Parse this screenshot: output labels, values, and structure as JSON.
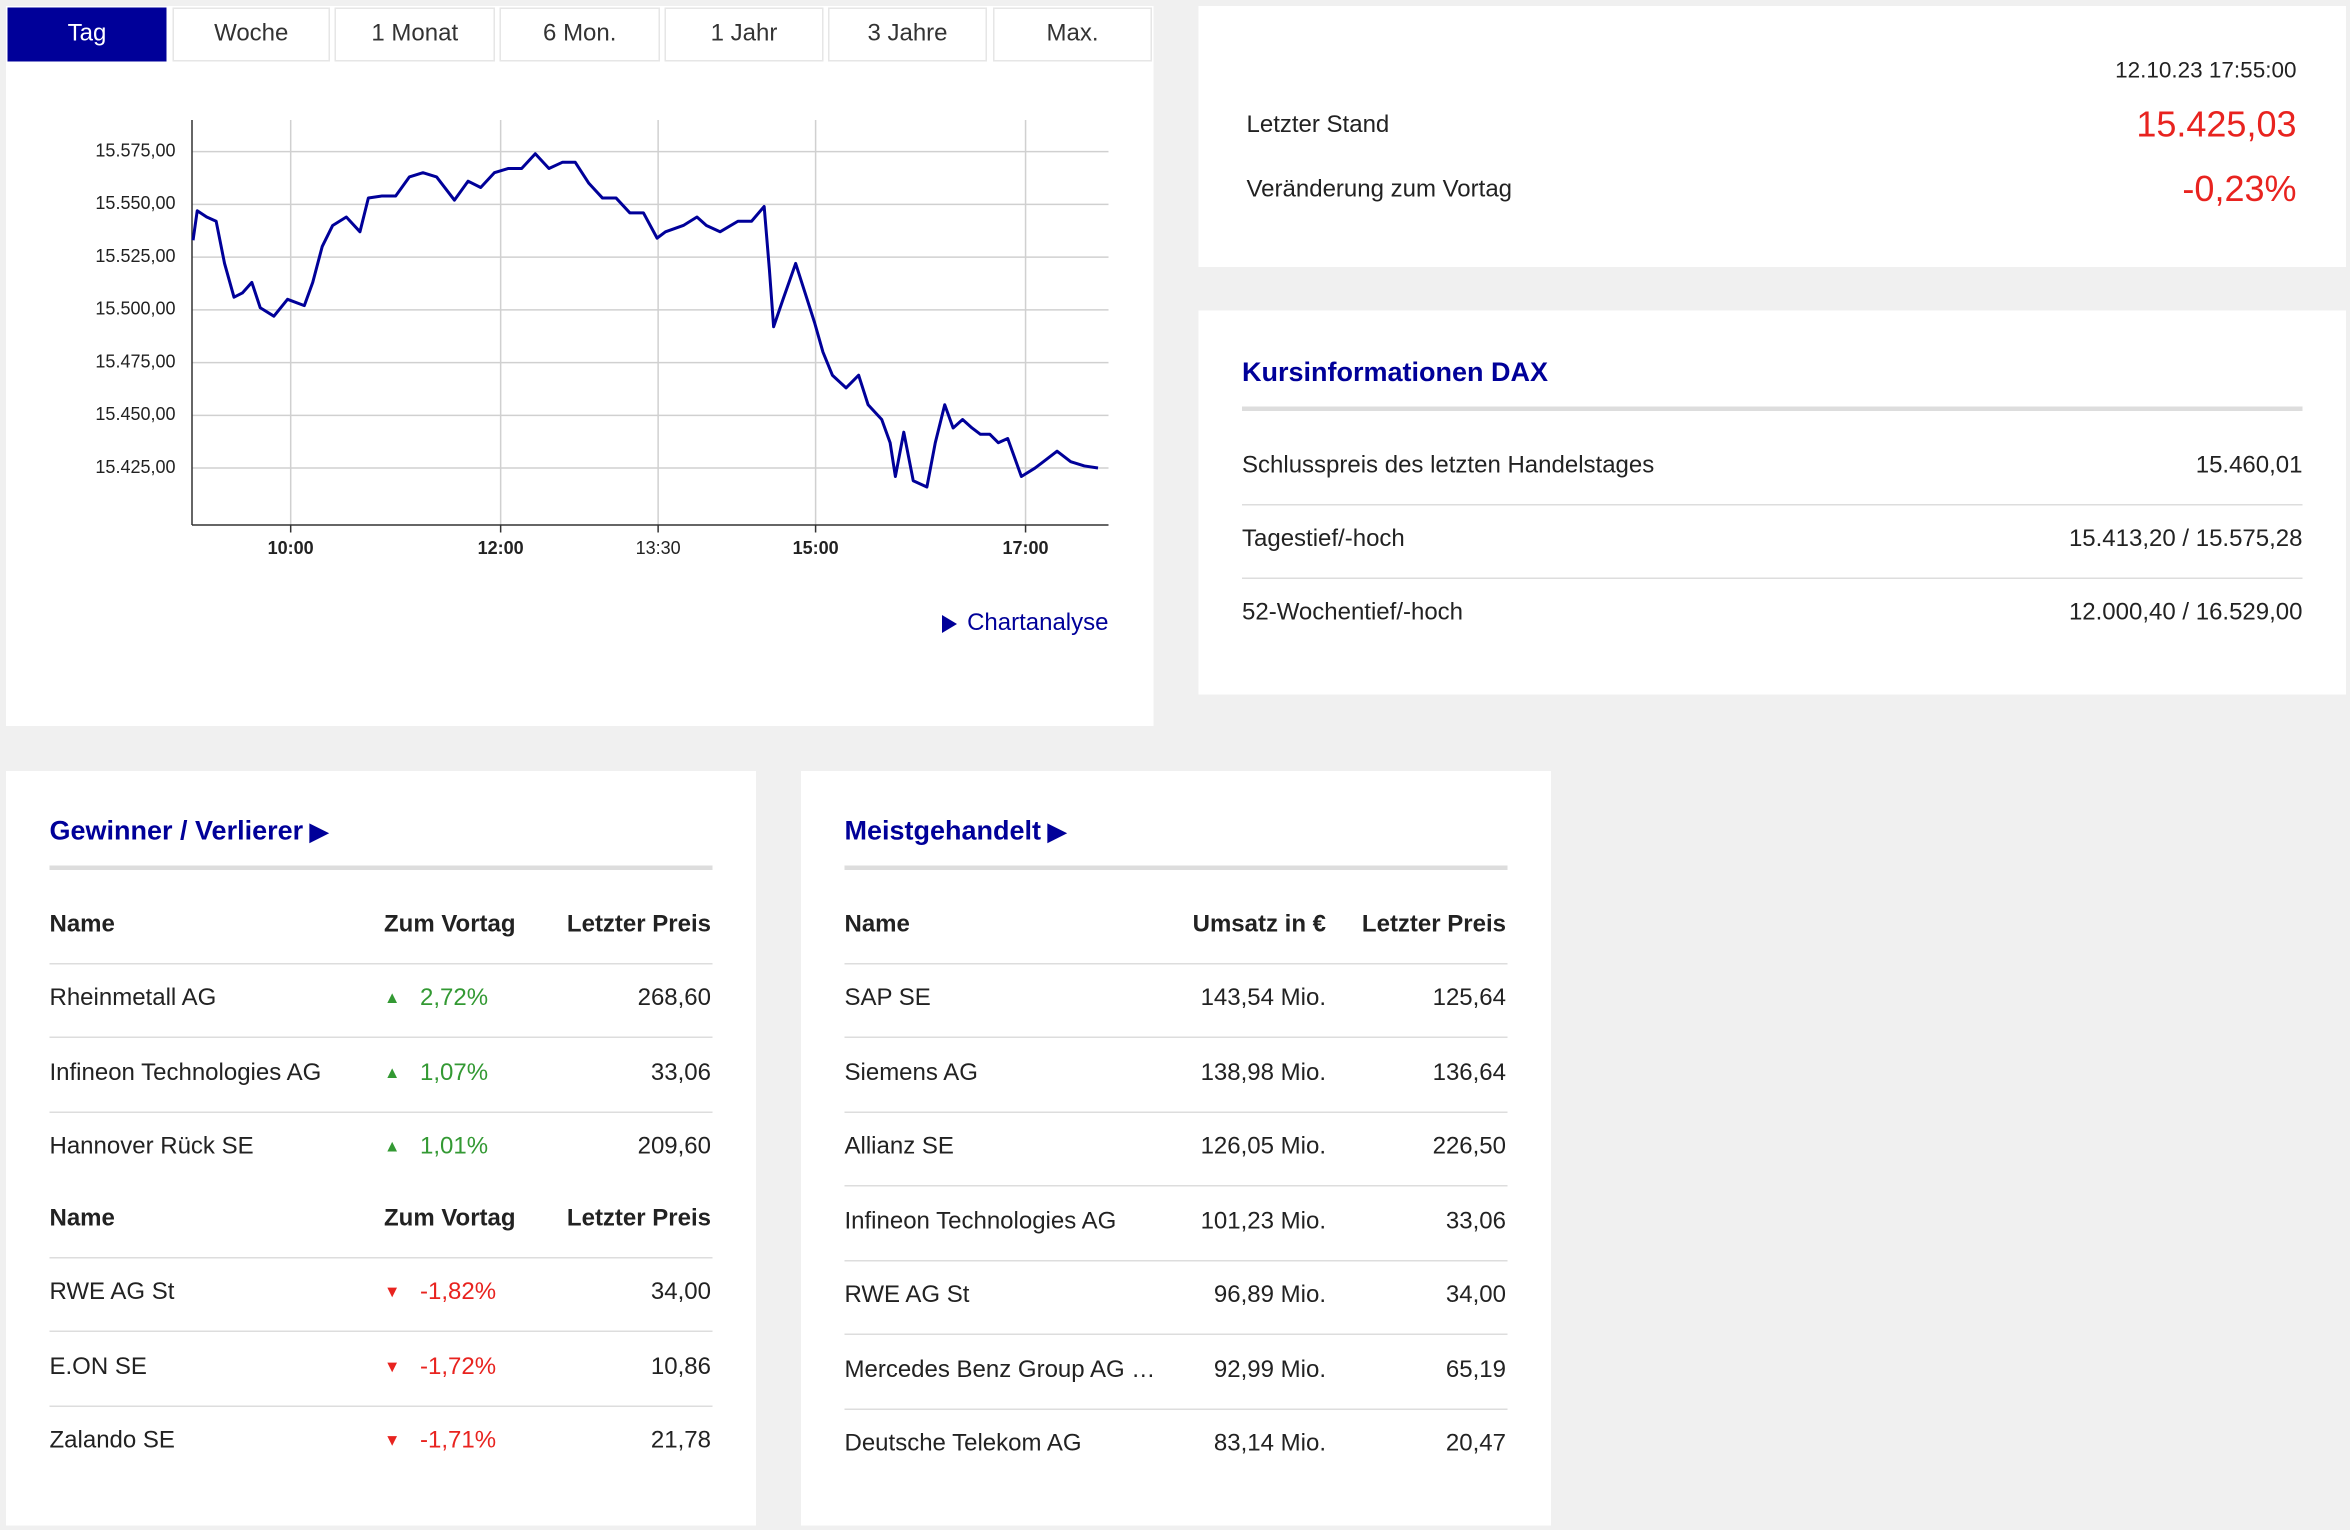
{
  "tabs": [
    "Tag",
    "Woche",
    "1 Monat",
    "6 Mon.",
    "1 Jahr",
    "3 Jahre",
    "Max."
  ],
  "chart_data": {
    "type": "line",
    "color": "#000099",
    "x": [
      9.07,
      9.11,
      9.2,
      9.29,
      9.37,
      9.46,
      9.54,
      9.63,
      9.71,
      9.84,
      9.97,
      10.13,
      10.21,
      10.3,
      10.4,
      10.53,
      10.66,
      10.74,
      10.87,
      11.0,
      11.13,
      11.26,
      11.39,
      11.56,
      11.69,
      11.81,
      11.94,
      12.07,
      12.2,
      12.33,
      12.46,
      12.59,
      12.71,
      12.84,
      12.97,
      13.1,
      13.23,
      13.36,
      13.49,
      13.57,
      13.74,
      13.87,
      13.96,
      14.09,
      14.26,
      14.39,
      14.51,
      14.56,
      14.6,
      14.69,
      14.81,
      14.9,
      14.99,
      15.07,
      15.16,
      15.29,
      15.41,
      15.5,
      15.63,
      15.71,
      15.76,
      15.84,
      15.93,
      16.06,
      16.14,
      16.23,
      16.31,
      16.4,
      16.49,
      16.57,
      16.66,
      16.74,
      16.83,
      16.96,
      17.09,
      17.17,
      17.3,
      17.43,
      17.56,
      17.69
    ],
    "values": [
      15533,
      15547,
      15544,
      15542,
      15522,
      15506,
      15508,
      15513,
      15501,
      15497,
      15505,
      15502,
      15513,
      15530,
      15540,
      15544,
      15537,
      15553,
      15554,
      15554,
      15563,
      15565,
      15563,
      15552,
      15561,
      15558,
      15565,
      15567,
      15567,
      15574,
      15567,
      15570,
      15570,
      15560,
      15553,
      15553,
      15546,
      15546,
      15534,
      15537,
      15540,
      15544,
      15540,
      15537,
      15542,
      15542,
      15549,
      15519,
      15492,
      15505,
      15522,
      15508,
      15494,
      15480,
      15469,
      15463,
      15469,
      15455,
      15448,
      15437,
      15421,
      15442,
      15419,
      15416,
      15437,
      15455,
      15444,
      15448,
      15444,
      15441,
      15441,
      15437,
      15439,
      15421,
      15425,
      15428,
      15433,
      15428,
      15426,
      15425
    ],
    "xlim": [
      9.06,
      17.79
    ],
    "xticks": [
      {
        "value": 10,
        "label": "10:00"
      },
      {
        "value": 12,
        "label": "12:00"
      },
      {
        "value": 13.5,
        "label": "13:30"
      },
      {
        "value": 15,
        "label": "15:00"
      },
      {
        "value": 17,
        "label": "17:00"
      }
    ],
    "ylim": [
      15398,
      15590
    ],
    "yticks": [
      {
        "value": 15425,
        "label": "15.425,00"
      },
      {
        "value": 15450,
        "label": "15.450,00"
      },
      {
        "value": 15475,
        "label": "15.475,00"
      },
      {
        "value": 15500,
        "label": "15.500,00"
      },
      {
        "value": 15525,
        "label": "15.525,00"
      },
      {
        "value": 15550,
        "label": "15.550,00"
      },
      {
        "value": 15575,
        "label": "15.575,00"
      }
    ],
    "grid": true
  },
  "chart_link": "Chartanalyse",
  "quote": {
    "timestamp": "12.10.23 17:55:00",
    "rows": [
      [
        "Letzter Stand",
        "15.425,03"
      ],
      [
        "Veränderung zum Vortag",
        "-0,23%"
      ]
    ]
  },
  "price_info": {
    "title": "Kursinformationen DAX",
    "rows": [
      [
        "Schlusspreis des letzten Handelstages",
        "15.460,01"
      ],
      [
        "Tagestief/-hoch",
        "15.413,20 / 15.575,28"
      ],
      [
        "52-Wochentief/-hoch",
        "12.000,40 / 16.529,00"
      ]
    ]
  },
  "movers": {
    "title": "Gewinner / Verlierer",
    "gainers": {
      "header": [
        "Name",
        "Zum Vortag",
        "Letzter Preis"
      ],
      "rows": [
        [
          "Rheinmetall AG",
          "2,72%",
          "268,60"
        ],
        [
          "Infineon Technologies AG",
          "1,07%",
          "33,06"
        ],
        [
          "Hannover Rück SE",
          "1,01%",
          "209,60"
        ]
      ]
    },
    "losers": {
      "header": [
        "Name",
        "Zum Vortag",
        "Letzter Preis"
      ],
      "rows": [
        [
          "RWE AG St",
          "-1,82%",
          "34,00"
        ],
        [
          "E.ON SE",
          "-1,72%",
          "10,86"
        ],
        [
          "Zalando SE",
          "-1,71%",
          "21,78"
        ]
      ]
    }
  },
  "most_traded": {
    "title": "Meistgehandelt",
    "header": [
      "Name",
      "Umsatz in €",
      "Letzter Preis"
    ],
    "rows": [
      [
        "SAP SE",
        "143,54 Mio.",
        "125,64"
      ],
      [
        "Siemens AG",
        "138,98 Mio.",
        "136,64"
      ],
      [
        "Allianz SE",
        "126,05 Mio.",
        "226,50"
      ],
      [
        "Infineon Technologies AG",
        "101,23 Mio.",
        "33,06"
      ],
      [
        "RWE AG St",
        "96,89 Mio.",
        "34,00"
      ],
      [
        "Mercedes Benz Group AG …",
        "92,99 Mio.",
        "65,19"
      ],
      [
        "Deutsche Telekom AG",
        "83,14 Mio.",
        "20,47"
      ]
    ]
  }
}
